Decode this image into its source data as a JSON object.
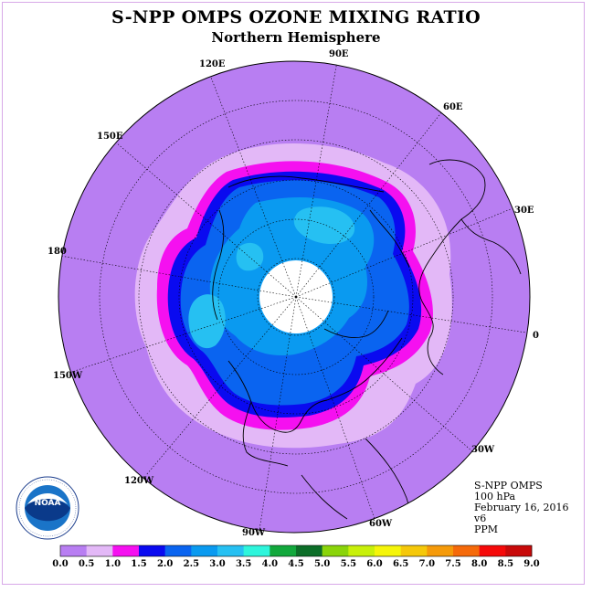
{
  "title": "S-NPP OMPS OZONE MIXING RATIO",
  "subtitle": "Northern Hemisphere",
  "longitude_labels": [
    "90E",
    "60E",
    "30E",
    "0",
    "30W",
    "60W",
    "90W",
    "120W",
    "150W",
    "180",
    "150E",
    "120E"
  ],
  "info": {
    "instrument": "S-NPP OMPS",
    "level": "100 hPa",
    "date": "February 16, 2016",
    "version": "v6",
    "units": "PPM"
  },
  "colorbar": {
    "ticks": [
      "0.0",
      "0.5",
      "1.0",
      "1.5",
      "2.0",
      "2.5",
      "3.0",
      "3.5",
      "4.0",
      "4.5",
      "5.0",
      "5.5",
      "6.0",
      "6.5",
      "7.0",
      "7.5",
      "8.0",
      "8.5",
      "9.0"
    ],
    "colors": [
      "#b87ef2",
      "#e3b8f7",
      "#f510f0",
      "#0a0af0",
      "#0a64f0",
      "#0a9af0",
      "#26c0f2",
      "#2ef5dc",
      "#12a83c",
      "#0c6e28",
      "#8ad40a",
      "#c8f00a",
      "#f5f50a",
      "#f5c80a",
      "#f59a0a",
      "#f56a0a",
      "#f50a0a",
      "#c80a0a",
      "#7a5030"
    ]
  },
  "logo": {
    "text": "NOAA",
    "ring_text": "NATIONAL OCEANIC AND ATMOSPHERIC ADMINISTRATION U.S. DEPARTMENT OF COMMERCE"
  },
  "map_colors": {
    "background": "#b87ef2",
    "level_0_5": "#e3b8f7",
    "level_1_0": "#f510f0",
    "level_1_5": "#0a0af0",
    "level_2_0": "#0a64f0",
    "level_2_5": "#0a9af0",
    "level_3_0": "#26c0f2",
    "missing": "#ffffff"
  }
}
